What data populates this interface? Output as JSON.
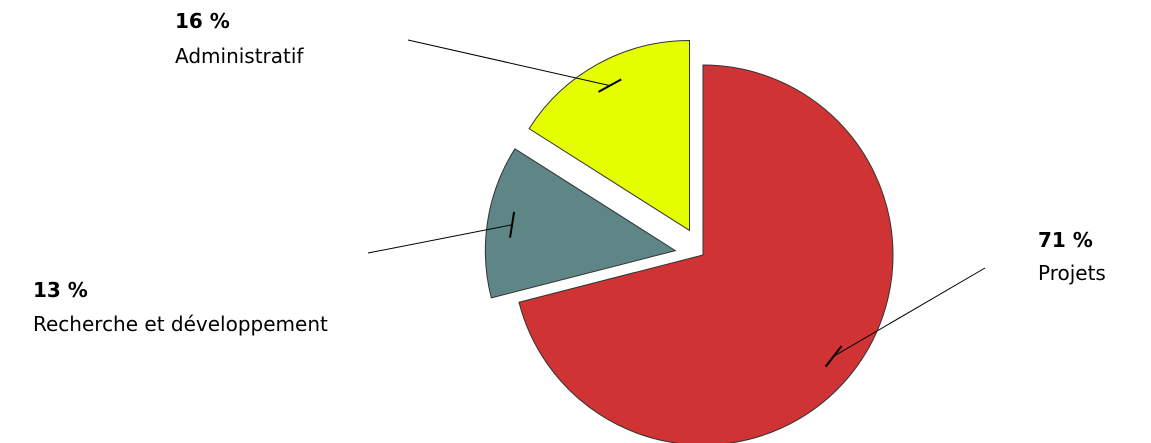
{
  "chart_data": {
    "type": "pie",
    "title": "",
    "legend": "none",
    "exploded": true,
    "slices": [
      {
        "label": "Projets",
        "value": 71,
        "value_label": "71 %",
        "color": "#d03333"
      },
      {
        "label": "Recherche et développement",
        "value": 13,
        "value_label": "13 %",
        "color": "#5f8686"
      },
      {
        "label": "Administratif",
        "value": 16,
        "value_label": "16 %",
        "color": "#e5ff00"
      }
    ]
  }
}
